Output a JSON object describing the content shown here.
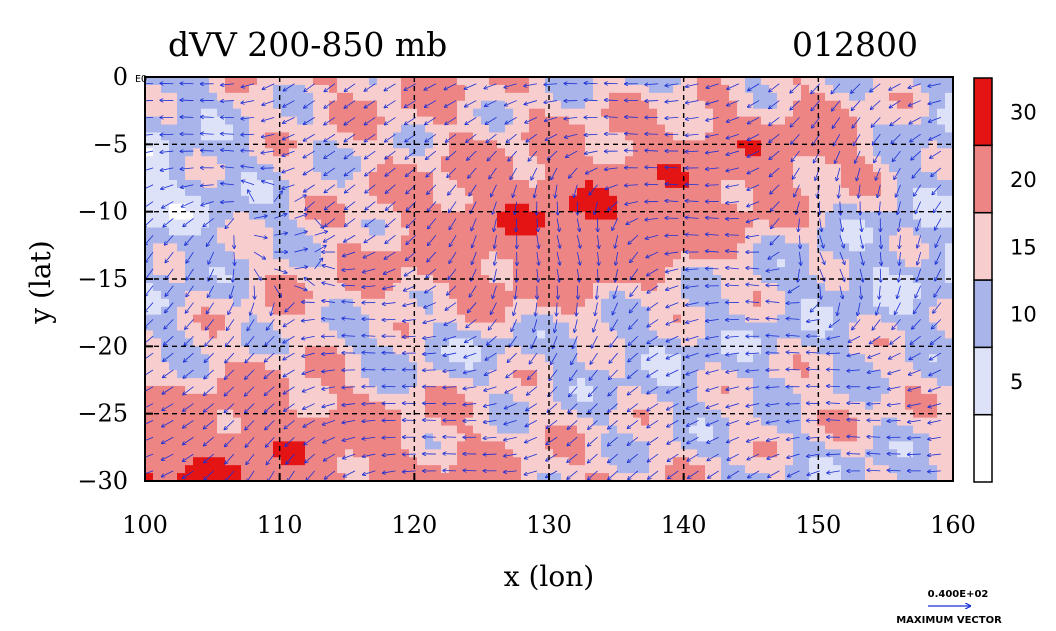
{
  "chart_data": {
    "type": "heatmap",
    "title": "dVV 200-850 mb",
    "title_right": "012800",
    "xlabel": "x (lon)",
    "ylabel": "y (lat)",
    "xlim": [
      100,
      160
    ],
    "ylim": [
      -30,
      0
    ],
    "x_ticks": [
      "100",
      "110",
      "120",
      "130",
      "140",
      "150",
      "160"
    ],
    "y_ticks": [
      "0",
      "−5",
      "−10",
      "−15",
      "−20",
      "−25",
      "−30"
    ],
    "x_tick_values": [
      100,
      110,
      120,
      130,
      140,
      150,
      160
    ],
    "y_tick_values": [
      0,
      -5,
      -10,
      -15,
      -20,
      -25,
      -30
    ],
    "grid": "dashed",
    "corner_label": "EQ",
    "colorbar": {
      "levels": [
        0,
        5,
        10,
        15,
        20,
        30,
        40
      ],
      "tick_labels": [
        "5",
        "10",
        "15",
        "20",
        "30"
      ],
      "tick_values": [
        5,
        10,
        15,
        20,
        30
      ],
      "colors": [
        "#ffffff",
        "#dee2f8",
        "#a8b4ea",
        "#f7cdcd",
        "#ee8585",
        "#e41414"
      ]
    },
    "field": {
      "description_grid_lon": [
        100,
        110,
        120,
        130,
        140,
        150,
        160
      ],
      "lat_rows": [
        0,
        -5,
        -10,
        -15,
        -20,
        -25,
        -30
      ],
      "values": [
        [
          12,
          18,
          22,
          16,
          14,
          18,
          12
        ],
        [
          10,
          16,
          18,
          20,
          24,
          26,
          10
        ],
        [
          8,
          14,
          22,
          30,
          28,
          16,
          12
        ],
        [
          12,
          18,
          22,
          24,
          18,
          12,
          10
        ],
        [
          14,
          18,
          12,
          14,
          12,
          14,
          16
        ],
        [
          22,
          24,
          20,
          16,
          14,
          18,
          16
        ],
        [
          32,
          28,
          22,
          20,
          18,
          12,
          14
        ]
      ]
    },
    "vectors": {
      "color": "#1a2fd6",
      "reference_label": "0.400E+02",
      "reference_caption": "MAXIMUM VECTOR"
    }
  }
}
